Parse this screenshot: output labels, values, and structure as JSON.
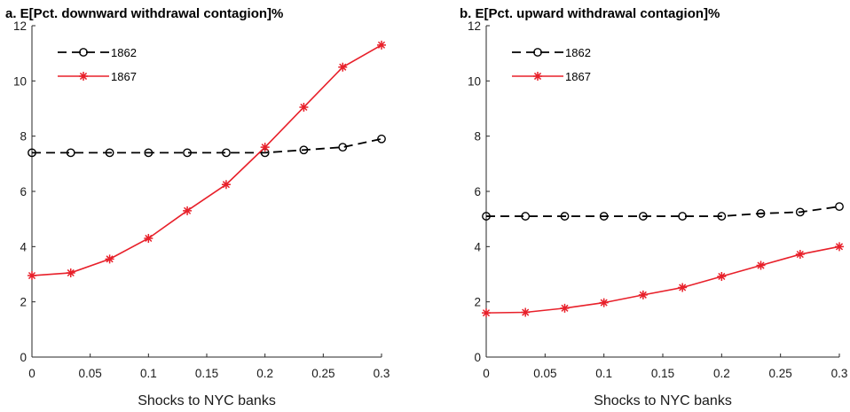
{
  "chart_data": [
    {
      "type": "line",
      "title": "a. E[Pct. downward withdrawal contagion]%",
      "xlabel": "Shocks to NYC banks",
      "ylabel": "",
      "xlim": [
        0,
        0.3
      ],
      "ylim": [
        0,
        12
      ],
      "xticks": [
        "0",
        "0.05",
        "0.1",
        "0.15",
        "0.2",
        "0.25",
        "0.3"
      ],
      "yticks": [
        "0",
        "2",
        "4",
        "6",
        "8",
        "10",
        "12"
      ],
      "legend_position": "top-left",
      "grid": false,
      "x": [
        0,
        0.0333,
        0.0667,
        0.1,
        0.1333,
        0.1667,
        0.2,
        0.2333,
        0.2667,
        0.3
      ],
      "series": [
        {
          "name": "1862",
          "color": "#000000",
          "style": "dashed",
          "marker": "circle",
          "values": [
            7.4,
            7.4,
            7.4,
            7.4,
            7.4,
            7.4,
            7.4,
            7.5,
            7.6,
            7.9
          ]
        },
        {
          "name": "1867",
          "color": "#e8202a",
          "style": "solid",
          "marker": "star",
          "values": [
            2.95,
            3.05,
            3.55,
            4.3,
            5.3,
            6.25,
            7.6,
            9.05,
            10.5,
            11.3
          ]
        }
      ]
    },
    {
      "type": "line",
      "title": "b. E[Pct. upward withdrawal contagion]%",
      "xlabel": "Shocks to NYC banks",
      "ylabel": "",
      "xlim": [
        0,
        0.3
      ],
      "ylim": [
        0,
        12
      ],
      "xticks": [
        "0",
        "0.05",
        "0.1",
        "0.15",
        "0.2",
        "0.25",
        "0.3"
      ],
      "yticks": [
        "0",
        "2",
        "4",
        "6",
        "8",
        "10",
        "12"
      ],
      "legend_position": "top-left",
      "grid": false,
      "x": [
        0,
        0.0333,
        0.0667,
        0.1,
        0.1333,
        0.1667,
        0.2,
        0.2333,
        0.2667,
        0.3
      ],
      "series": [
        {
          "name": "1862",
          "color": "#000000",
          "style": "dashed",
          "marker": "circle",
          "values": [
            5.1,
            5.1,
            5.1,
            5.1,
            5.1,
            5.1,
            5.1,
            5.2,
            5.25,
            5.45
          ]
        },
        {
          "name": "1867",
          "color": "#e8202a",
          "style": "solid",
          "marker": "star",
          "values": [
            1.6,
            1.62,
            1.77,
            1.97,
            2.25,
            2.52,
            2.92,
            3.32,
            3.72,
            4.0
          ]
        }
      ]
    }
  ]
}
